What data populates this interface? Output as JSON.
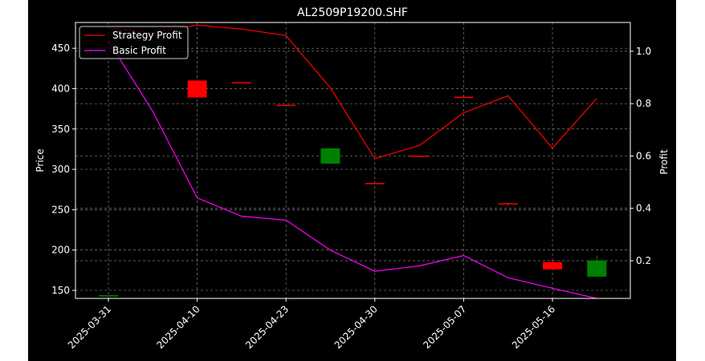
{
  "chart_data": {
    "type": "candlestick+line",
    "title": "AL2509P19200.SHF",
    "ylabel_left": "Price",
    "ylabel_right": "Profit",
    "xlabel": "",
    "grid": true,
    "legend_position": "top-left",
    "ylim_left": [
      140,
      482
    ],
    "ylim_right": [
      0.056,
      1.11
    ],
    "yticks_left": [
      150,
      200,
      250,
      300,
      350,
      400,
      450
    ],
    "yticks_right": [
      0.2,
      0.4,
      0.6,
      0.8,
      1.0
    ],
    "ytick_labels_left": [
      "150",
      "200",
      "250",
      "300",
      "350",
      "400",
      "450"
    ],
    "ytick_labels_right": [
      "0.2",
      "0.4",
      "0.6",
      "0.8",
      "1.0"
    ],
    "xtick_labels": [
      "2025-03-31",
      "2025-04-10",
      "2025-04-23",
      "2025-04-30",
      "2025-05-07",
      "2025-05-16"
    ],
    "xtick_positions": [
      0,
      2,
      4,
      6,
      8,
      10
    ],
    "n_points": 12,
    "candles": [
      {
        "i": 0,
        "open": 143,
        "close": 144,
        "high": 144,
        "low": 143,
        "color": "green"
      },
      {
        "i": 2,
        "open": 410,
        "close": 389,
        "high": 410,
        "low": 389,
        "color": "red"
      },
      {
        "i": 3,
        "open": 408,
        "close": 407,
        "high": 408,
        "low": 407,
        "color": "red"
      },
      {
        "i": 4,
        "open": 380,
        "close": 379,
        "high": 380,
        "low": 379,
        "color": "red"
      },
      {
        "i": 5,
        "open": 307,
        "close": 326,
        "high": 326,
        "low": 307,
        "color": "green"
      },
      {
        "i": 6,
        "open": 283,
        "close": 282,
        "high": 283,
        "low": 282,
        "color": "red"
      },
      {
        "i": 7,
        "open": 317,
        "close": 316,
        "high": 317,
        "low": 316,
        "color": "red"
      },
      {
        "i": 8,
        "open": 390,
        "close": 389,
        "high": 390,
        "low": 389,
        "color": "red"
      },
      {
        "i": 9,
        "open": 258,
        "close": 257,
        "high": 258,
        "low": 254,
        "color": "red"
      },
      {
        "i": 10,
        "open": 185,
        "close": 176,
        "high": 189,
        "low": 176,
        "color": "red"
      },
      {
        "i": 11,
        "open": 167,
        "close": 187,
        "high": 193,
        "low": 167,
        "color": "green"
      }
    ],
    "series": [
      {
        "name": "Strategy Profit",
        "color": "#ff0000",
        "x": [
          0,
          1,
          2,
          3,
          4,
          5,
          6,
          7,
          8,
          9,
          10,
          11
        ],
        "values": [
          1.09,
          1.07,
          1.1,
          1.085,
          1.06,
          0.86,
          0.59,
          0.64,
          0.765,
          0.83,
          0.63,
          0.82
        ]
      },
      {
        "name": "Basic Profit",
        "color": "#ff00ff",
        "x": [
          0,
          1,
          2,
          3,
          4,
          5,
          6,
          7,
          8,
          9,
          10,
          11
        ],
        "values": [
          1.04,
          0.77,
          0.44,
          0.37,
          0.355,
          0.24,
          0.16,
          0.18,
          0.22,
          0.135,
          0.095,
          0.053
        ]
      }
    ]
  },
  "colors": {
    "background": "#000000",
    "outer_background": "#ffffff",
    "text": "#ffffff",
    "grid": "#808080",
    "up": "#008000",
    "down": "#ff0000"
  }
}
